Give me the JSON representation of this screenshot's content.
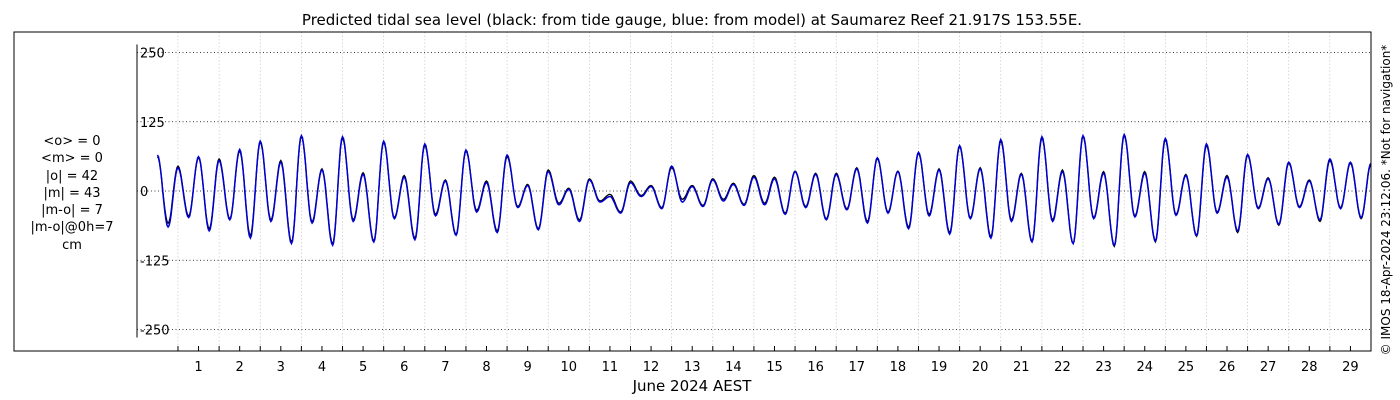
{
  "chart_data": {
    "type": "line",
    "title": "Predicted tidal sea level (black: from tide gauge, blue: from model) at Saumarez Reef 21.917S 153.55E.",
    "xlabel": "June 2024 AEST",
    "ylabel": "",
    "x_ticks": [
      "1",
      "2",
      "3",
      "4",
      "5",
      "6",
      "7",
      "8",
      "9",
      "10",
      "11",
      "12",
      "13",
      "14",
      "15",
      "16",
      "17",
      "18",
      "19",
      "20",
      "21",
      "22",
      "23",
      "24",
      "25",
      "26",
      "27",
      "28",
      "29"
    ],
    "xlim_days": [
      0.15,
      30.0
    ],
    "y_ticks": [
      250,
      125,
      0,
      -125,
      -250
    ],
    "ylim": [
      -260,
      285
    ],
    "grid": true,
    "legend": "none",
    "series": [
      {
        "color": "#000000",
        "dates": [
          "2024-05-31T12:00",
          "2024-06-01T00:00",
          "2024-06-01T12:00",
          "2024-06-02T00:00",
          "2024-06-02T12:00",
          "2024-06-03T00:00",
          "2024-06-03T12:00",
          "2024-06-04T00:00",
          "2024-06-04T12:00",
          "2024-06-05T00:00",
          "2024-06-05T12:00",
          "2024-06-06T00:00",
          "2024-06-06T12:00",
          "2024-06-07T00:00",
          "2024-06-07T12:00",
          "2024-06-08T00:00",
          "2024-06-08T12:00",
          "2024-06-09T00:00",
          "2024-06-09T12:00",
          "2024-06-10T00:00",
          "2024-06-10T12:00",
          "2024-06-11T00:00",
          "2024-06-11T12:00",
          "2024-06-12T00:00",
          "2024-06-12T12:00",
          "2024-06-13T00:00",
          "2024-06-13T12:00",
          "2024-06-14T00:00",
          "2024-06-14T12:00",
          "2024-06-15T00:00",
          "2024-06-15T12:00",
          "2024-06-16T00:00",
          "2024-06-16T12:00",
          "2024-06-17T00:00",
          "2024-06-17T12:00",
          "2024-06-18T00:00",
          "2024-06-18T12:00",
          "2024-06-19T00:00",
          "2024-06-19T12:00",
          "2024-06-20T00:00",
          "2024-06-20T12:00",
          "2024-06-21T00:00",
          "2024-06-21T12:00",
          "2024-06-22T00:00",
          "2024-06-22T12:00",
          "2024-06-23T00:00",
          "2024-06-23T12:00",
          "2024-06-24T00:00",
          "2024-06-24T12:00",
          "2024-06-25T00:00",
          "2024-06-25T12:00",
          "2024-06-26T00:00",
          "2024-06-26T12:00",
          "2024-06-27T00:00",
          "2024-06-27T12:00",
          "2024-06-28T00:00",
          "2024-06-28T12:00",
          "2024-06-29T00:00",
          "2024-06-29T12:00",
          "2024-06-30T00:00"
        ],
        "high": [
          62,
          45,
          60,
          58,
          72,
          88,
          55,
          98,
          40,
          95,
          33,
          88,
          28,
          82,
          20,
          72,
          18,
          62,
          12,
          38,
          5,
          22,
          -6,
          18,
          10,
          42,
          10,
          22,
          14,
          28,
          25,
          36,
          32,
          32,
          42,
          58,
          36,
          68,
          40,
          80,
          42,
          90,
          32,
          95,
          38,
          98,
          35,
          100,
          35,
          92,
          30,
          82,
          28,
          64,
          24,
          50,
          20,
          55,
          50,
          48
        ],
        "low": [
          -58,
          -45,
          -68,
          -50,
          -80,
          -52,
          -92,
          -55,
          -95,
          -52,
          -90,
          -48,
          -85,
          -42,
          -78,
          -35,
          -72,
          -28,
          -68,
          -22,
          -52,
          -18,
          -38,
          -8,
          -30,
          -15,
          -26,
          -15,
          -24,
          -22,
          -40,
          -28,
          -50,
          -32,
          -55,
          -38,
          -65,
          -42,
          -75,
          -48,
          -82,
          -52,
          -90,
          -52,
          -95,
          -48,
          -100,
          -45,
          -92,
          -42,
          -82,
          -38,
          -75,
          -30,
          -62,
          -28,
          -55,
          -30,
          -50,
          -30
        ]
      },
      {
        "color": "#0000d0",
        "dates": [
          "2024-05-31T12:00",
          "2024-06-01T00:00",
          "2024-06-01T12:00",
          "2024-06-02T00:00",
          "2024-06-02T12:00",
          "2024-06-03T00:00",
          "2024-06-03T12:00",
          "2024-06-04T00:00",
          "2024-06-04T12:00",
          "2024-06-05T00:00",
          "2024-06-05T12:00",
          "2024-06-06T00:00",
          "2024-06-06T12:00",
          "2024-06-07T00:00",
          "2024-06-07T12:00",
          "2024-06-08T00:00",
          "2024-06-08T12:00",
          "2024-06-09T00:00",
          "2024-06-09T12:00",
          "2024-06-10T00:00",
          "2024-06-10T12:00",
          "2024-06-11T00:00",
          "2024-06-11T12:00",
          "2024-06-12T00:00",
          "2024-06-12T12:00",
          "2024-06-13T00:00",
          "2024-06-13T12:00",
          "2024-06-14T00:00",
          "2024-06-14T12:00",
          "2024-06-15T00:00",
          "2024-06-15T12:00",
          "2024-06-16T00:00",
          "2024-06-16T12:00",
          "2024-06-17T00:00",
          "2024-06-17T12:00",
          "2024-06-18T00:00",
          "2024-06-18T12:00",
          "2024-06-19T00:00",
          "2024-06-19T12:00",
          "2024-06-20T00:00",
          "2024-06-20T12:00",
          "2024-06-21T00:00",
          "2024-06-21T12:00",
          "2024-06-22T00:00",
          "2024-06-22T12:00",
          "2024-06-23T00:00",
          "2024-06-23T12:00",
          "2024-06-24T00:00",
          "2024-06-24T12:00",
          "2024-06-25T00:00",
          "2024-06-25T12:00",
          "2024-06-26T00:00",
          "2024-06-26T12:00",
          "2024-06-27T00:00",
          "2024-06-27T12:00",
          "2024-06-28T00:00",
          "2024-06-28T12:00",
          "2024-06-29T00:00",
          "2024-06-29T12:00",
          "2024-06-30T00:00"
        ],
        "high": [
          65,
          42,
          62,
          55,
          75,
          90,
          52,
          100,
          38,
          98,
          30,
          90,
          25,
          85,
          18,
          74,
          15,
          65,
          10,
          35,
          3,
          20,
          -10,
          15,
          8,
          45,
          8,
          20,
          12,
          25,
          22,
          35,
          30,
          30,
          40,
          60,
          35,
          70,
          38,
          82,
          40,
          93,
          30,
          98,
          35,
          100,
          32,
          102,
          32,
          95,
          28,
          85,
          25,
          66,
          22,
          52,
          18,
          58,
          52,
          50
        ],
        "low": [
          -65,
          -48,
          -72,
          -52,
          -85,
          -55,
          -95,
          -58,
          -98,
          -55,
          -92,
          -50,
          -88,
          -45,
          -80,
          -38,
          -75,
          -30,
          -70,
          -25,
          -55,
          -20,
          -40,
          -10,
          -32,
          -20,
          -28,
          -18,
          -26,
          -25,
          -42,
          -30,
          -52,
          -34,
          -58,
          -40,
          -68,
          -45,
          -78,
          -50,
          -85,
          -55,
          -92,
          -55,
          -95,
          -50,
          -98,
          -47,
          -90,
          -44,
          -80,
          -40,
          -72,
          -32,
          -60,
          -30,
          -52,
          -32,
          -48,
          -32
        ]
      }
    ]
  },
  "stats": {
    "mean_obs": "<o> = 0",
    "mean_model": "<m> = 0",
    "abs_obs": "|o| = 42",
    "abs_model": "|m| = 43",
    "abs_diff": "|m-o| = 7",
    "abs_diff_0h": "|m-o|@0h=7",
    "unit": "cm"
  },
  "credit": "© IMOS 18-Apr-2024 23:12:06. *Not for navigation*"
}
